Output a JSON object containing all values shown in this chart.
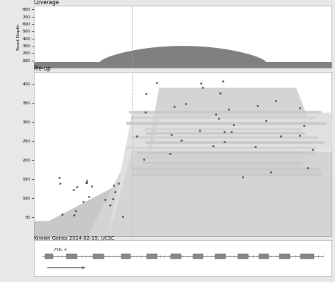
{
  "title_coverage": "Coverage",
  "title_preup": "Pre-up",
  "title_genes": "Known Genes 2014-02-19, UCSC",
  "gene_label": "FHL 4",
  "coverage_yticks": [
    100,
    200,
    300,
    400,
    500,
    600,
    700,
    800
  ],
  "coverage_ylabel": "Read Depth",
  "preup_yticks": [
    50,
    100,
    150,
    200,
    250,
    300,
    350,
    400
  ],
  "bg_color": "#e8e8e8",
  "panel_bg": "#ffffff",
  "fill_color_dark": "#808080",
  "fill_color_med": "#b0b0b0",
  "fill_color_light": "#c8c8c8",
  "fill_color_lighter": "#d4d4d4",
  "fill_color_lightest": "#e0e0e0",
  "dashed_line_x": 0.33,
  "border_color": "#999999",
  "read_bar_color": "#c0c0c0",
  "read_bar_dark": "#aaaaaa",
  "read_bar_lighter": "#d8d8d8"
}
